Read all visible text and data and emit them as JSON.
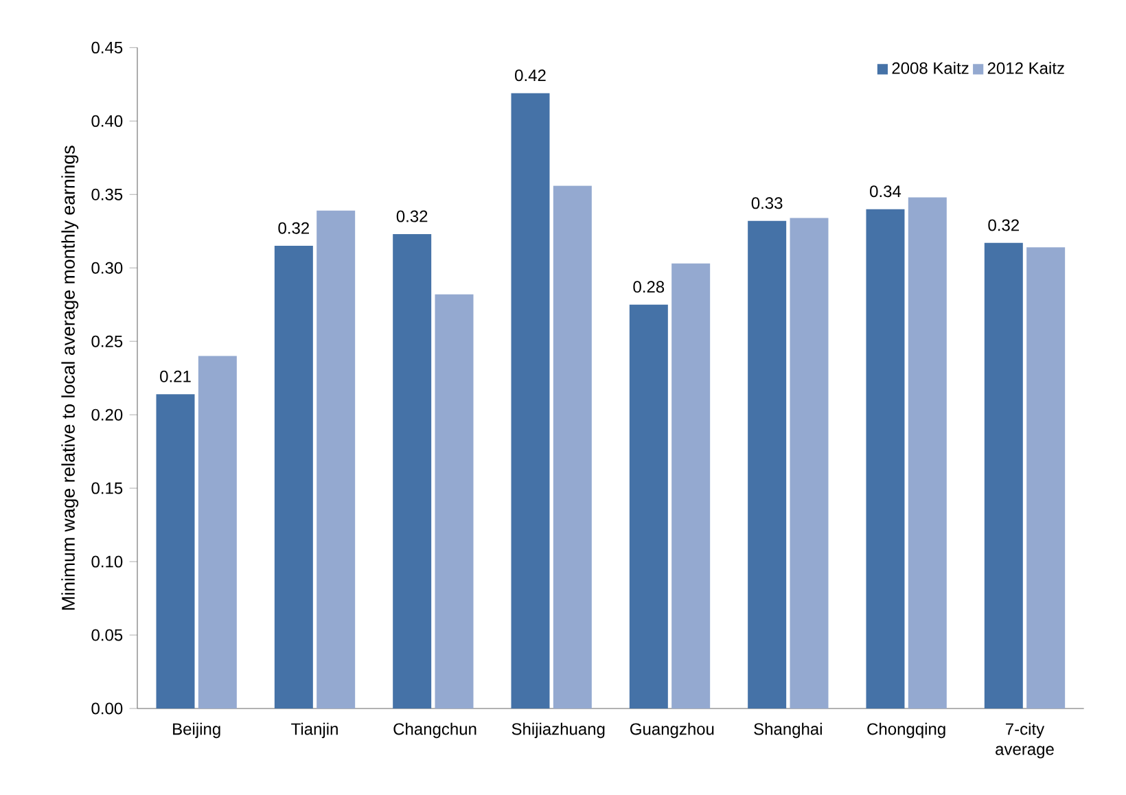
{
  "chart_data": {
    "type": "bar",
    "ylabel": "Minimum wage relative to local average monthly earnings",
    "categories": [
      "Beijing",
      "Tianjin",
      "Changchun",
      "Shijiazhuang",
      "Guangzhou",
      "Shanghai",
      "Chongqing",
      "7-city average"
    ],
    "series": [
      {
        "name": "2008 Kaitz",
        "color": "#4572a7",
        "values": [
          0.214,
          0.315,
          0.323,
          0.419,
          0.275,
          0.332,
          0.34,
          0.317
        ],
        "value_labels": [
          "0.21",
          "0.32",
          "0.32",
          "0.42",
          "0.28",
          "0.33",
          "0.34",
          "0.32"
        ]
      },
      {
        "name": "2012 Kaitz",
        "color": "#94a9d0",
        "values": [
          0.24,
          0.339,
          0.282,
          0.356,
          0.303,
          0.334,
          0.348,
          0.314
        ]
      }
    ],
    "ylim": [
      0,
      0.45
    ],
    "yticks": [
      {
        "value": 0,
        "label": "0.00"
      },
      {
        "value": 0.05,
        "label": "0.05"
      },
      {
        "value": 0.1,
        "label": "0.10"
      },
      {
        "value": 0.15,
        "label": "0.15"
      },
      {
        "value": 0.2,
        "label": "0.20"
      },
      {
        "value": 0.25,
        "label": "0.25"
      },
      {
        "value": 0.3,
        "label": "0.30"
      },
      {
        "value": 0.35,
        "label": "0.35"
      },
      {
        "value": 0.4,
        "label": "0.40"
      },
      {
        "value": 0.45,
        "label": "0.45"
      }
    ],
    "grid": false,
    "legend": "top right"
  }
}
